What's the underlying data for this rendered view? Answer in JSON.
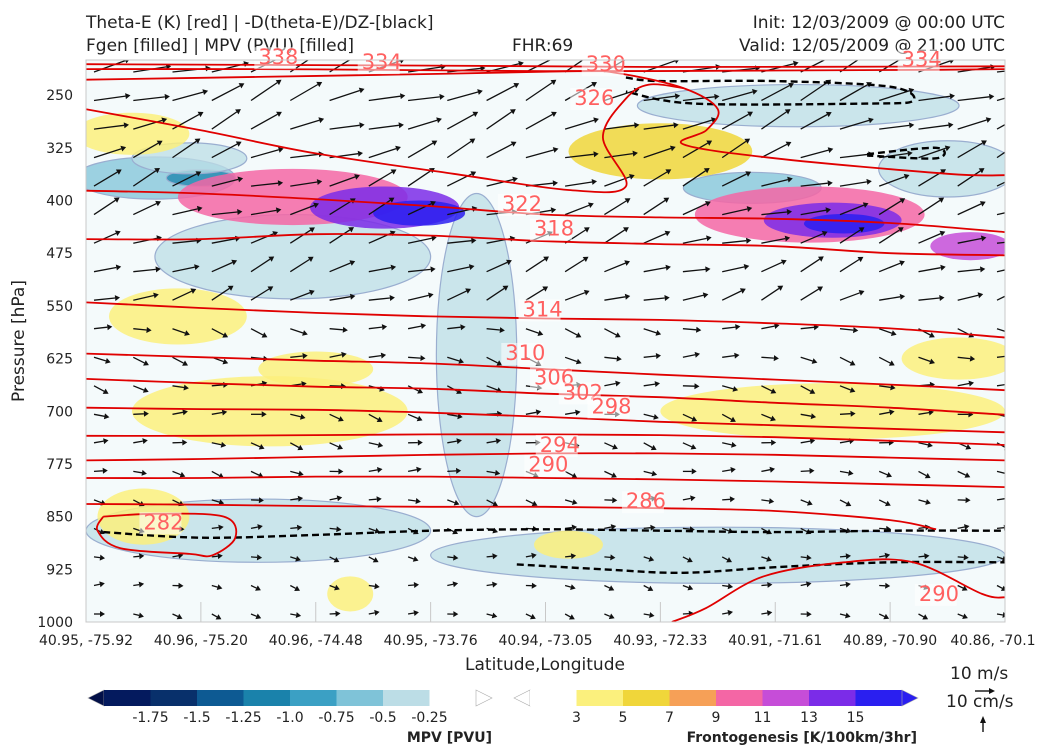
{
  "header": {
    "left_line1": "Theta-E (K) [red] | -D(theta-E)/DZ-[black]",
    "left_line2": "Fgen [filled] | MPV (PVU) [filled]",
    "center": "FHR:69",
    "right_line1": "Init: 12/03/2009 @ 00:00 UTC",
    "right_line2": "Valid: 12/05/2009 @ 21:00 UTC"
  },
  "chart_data": {
    "type": "cross-section",
    "xlabel": "Latitude,Longitude",
    "ylabel": "Pressure [hPa]",
    "ylim": [
      1000,
      200
    ],
    "y_ticks": [
      250,
      325,
      400,
      475,
      550,
      625,
      700,
      775,
      850,
      925,
      1000
    ],
    "x_ticks": [
      "40.95, -75.92",
      "40.96, -75.20",
      "40.96, -74.48",
      "40.95, -73.76",
      "40.94, -73.05",
      "40.93, -72.33",
      "40.91, -71.61",
      "40.89, -70.90",
      "40.86, -70.1"
    ],
    "theta_e_contours": [
      {
        "value": "338",
        "pts": [
          [
            0,
            206
          ],
          [
            1.5,
            207
          ],
          [
            3,
            208
          ],
          [
            5,
            210
          ],
          [
            8,
            209
          ]
        ]
      },
      {
        "value": "334",
        "pts": [
          [
            0,
            213
          ],
          [
            1.5,
            213
          ],
          [
            2.5,
            214
          ],
          [
            4,
            216
          ],
          [
            6,
            215
          ],
          [
            7.4,
            214
          ],
          [
            8,
            213
          ]
        ]
      },
      {
        "value": "330",
        "pts": [
          [
            0,
            228
          ],
          [
            1.5,
            224
          ],
          [
            3,
            220
          ],
          [
            4.2,
            216
          ],
          [
            4.6,
            218
          ],
          [
            5.2,
            240
          ],
          [
            5.5,
            270
          ],
          [
            5.4,
            300
          ],
          [
            5.2,
            320
          ],
          [
            6,
            340
          ],
          [
            7.5,
            362
          ],
          [
            8,
            364
          ]
        ]
      },
      {
        "value": "326",
        "pts": [
          [
            0,
            270
          ],
          [
            1,
            300
          ],
          [
            2,
            333
          ],
          [
            3.2,
            362
          ],
          [
            4.2,
            385
          ],
          [
            4.7,
            380
          ],
          [
            4.5,
            310
          ],
          [
            4.7,
            255
          ],
          [
            4.9,
            235
          ],
          [
            5.2,
            240
          ]
        ]
      },
      {
        "value": "322",
        "pts": [
          [
            0,
            386
          ],
          [
            1,
            390
          ],
          [
            2,
            398
          ],
          [
            3,
            408
          ],
          [
            4,
            420
          ],
          [
            5,
            424
          ],
          [
            6,
            426
          ],
          [
            7,
            432
          ],
          [
            8,
            445
          ]
        ]
      },
      {
        "value": "318",
        "pts": [
          [
            0,
            455
          ],
          [
            1,
            455
          ],
          [
            2,
            448
          ],
          [
            3,
            450
          ],
          [
            4,
            458
          ],
          [
            5,
            462
          ],
          [
            6,
            465
          ],
          [
            7,
            475
          ],
          [
            8,
            478
          ]
        ]
      },
      {
        "value": "314",
        "pts": [
          [
            0,
            545
          ],
          [
            1,
            553
          ],
          [
            2,
            560
          ],
          [
            3,
            565
          ],
          [
            4,
            568
          ],
          [
            5,
            570
          ],
          [
            6,
            575
          ],
          [
            7,
            582
          ],
          [
            8,
            595
          ]
        ]
      },
      {
        "value": "310",
        "pts": [
          [
            0,
            618
          ],
          [
            1,
            623
          ],
          [
            2,
            628
          ],
          [
            3,
            632
          ],
          [
            4,
            640
          ],
          [
            5,
            648
          ],
          [
            6,
            655
          ],
          [
            7,
            662
          ],
          [
            8,
            670
          ]
        ]
      },
      {
        "value": "306",
        "pts": [
          [
            0,
            654
          ],
          [
            1,
            660
          ],
          [
            2,
            665
          ],
          [
            3,
            668
          ],
          [
            4,
            675
          ],
          [
            5,
            680
          ],
          [
            6,
            688
          ],
          [
            7,
            695
          ],
          [
            8,
            705
          ]
        ]
      },
      {
        "value": "302",
        "pts": [
          [
            0,
            695
          ],
          [
            1,
            697
          ],
          [
            2,
            698
          ],
          [
            3,
            702
          ],
          [
            4,
            708
          ],
          [
            5,
            715
          ],
          [
            6,
            720
          ],
          [
            7,
            725
          ],
          [
            8,
            730
          ]
        ]
      },
      {
        "value": "298",
        "pts": [
          [
            0,
            735
          ],
          [
            1,
            735
          ],
          [
            2,
            734
          ],
          [
            3,
            733
          ],
          [
            4,
            733
          ],
          [
            5,
            734
          ],
          [
            6,
            737
          ],
          [
            7,
            742
          ],
          [
            8,
            748
          ]
        ]
      },
      {
        "value": "294",
        "pts": [
          [
            0,
            770
          ],
          [
            1,
            768
          ],
          [
            2,
            765
          ],
          [
            3,
            762
          ],
          [
            4,
            760
          ],
          [
            5,
            760
          ],
          [
            6,
            762
          ],
          [
            7,
            766
          ],
          [
            8,
            770
          ]
        ]
      },
      {
        "value": "290",
        "pts": [
          [
            0,
            795
          ],
          [
            1,
            795
          ],
          [
            2,
            793
          ],
          [
            3,
            793
          ],
          [
            4,
            795
          ],
          [
            5,
            797
          ],
          [
            6,
            800
          ],
          [
            7,
            804
          ],
          [
            8,
            808
          ]
        ]
      },
      {
        "value": "286",
        "pts": [
          [
            0,
            832
          ],
          [
            1,
            833
          ],
          [
            2,
            835
          ],
          [
            3,
            836
          ],
          [
            4,
            836
          ],
          [
            5,
            838
          ],
          [
            6,
            842
          ],
          [
            7,
            855
          ],
          [
            7.4,
            868
          ]
        ]
      },
      {
        "value": "282",
        "pts": [
          [
            0.15,
            850
          ],
          [
            0.6,
            846
          ],
          [
            1.2,
            850
          ],
          [
            1.3,
            880
          ],
          [
            1.1,
            905
          ],
          [
            0.9,
            903
          ],
          [
            0.3,
            895
          ],
          [
            0.1,
            870
          ],
          [
            0.15,
            850
          ]
        ]
      },
      {
        "value": "290",
        "pts": [
          [
            5.1,
            1000
          ],
          [
            5.4,
            980
          ],
          [
            5.9,
            935
          ],
          [
            6.6,
            915
          ],
          [
            7.2,
            915
          ],
          [
            7.8,
            960
          ],
          [
            8,
            965
          ]
        ]
      }
    ],
    "theta_e_label_positions": [
      {
        "text": "338",
        "x": 1.5,
        "y": 206
      },
      {
        "text": "334",
        "x": 2.4,
        "y": 213
      },
      {
        "text": "330",
        "x": 4.35,
        "y": 216
      },
      {
        "text": "334",
        "x": 7.1,
        "y": 209
      },
      {
        "text": "326",
        "x": 4.25,
        "y": 264
      },
      {
        "text": "322",
        "x": 3.62,
        "y": 415
      },
      {
        "text": "318",
        "x": 3.9,
        "y": 450
      },
      {
        "text": "314",
        "x": 3.8,
        "y": 565
      },
      {
        "text": "310",
        "x": 3.65,
        "y": 627
      },
      {
        "text": "306",
        "x": 3.9,
        "y": 662
      },
      {
        "text": "302",
        "x": 4.15,
        "y": 683
      },
      {
        "text": "298",
        "x": 4.4,
        "y": 703
      },
      {
        "text": "294",
        "x": 3.95,
        "y": 758
      },
      {
        "text": "290",
        "x": 3.85,
        "y": 786
      },
      {
        "text": "286",
        "x": 4.7,
        "y": 838
      },
      {
        "text": "282",
        "x": 0.5,
        "y": 868
      },
      {
        "text": "290",
        "x": 7.25,
        "y": 970
      }
    ],
    "stability_contours_black_dashed": [
      [
        [
          0.15,
          872
        ],
        [
          1,
          880
        ],
        [
          2,
          876
        ],
        [
          3,
          870
        ],
        [
          4,
          868
        ],
        [
          5,
          870
        ],
        [
          6,
          872
        ],
        [
          7,
          870
        ],
        [
          8,
          870
        ]
      ],
      [
        [
          3.75,
          918
        ],
        [
          4.5,
          925
        ],
        [
          5.2,
          930
        ],
        [
          6,
          922
        ],
        [
          7,
          915
        ],
        [
          8,
          915
        ]
      ],
      [
        [
          4.7,
          225
        ],
        [
          5,
          230
        ],
        [
          6,
          230
        ],
        [
          7,
          238
        ],
        [
          7.2,
          258
        ],
        [
          6.8,
          262
        ],
        [
          5.3,
          262
        ],
        [
          4.7,
          245
        ]
      ],
      [
        [
          6.8,
          334
        ],
        [
          7.4,
          325
        ],
        [
          7.4,
          340
        ],
        [
          6.8,
          336
        ]
      ]
    ],
    "fgen_fill_levels": [
      3,
      5,
      7,
      9,
      11,
      13,
      15
    ],
    "fgen_colors": [
      "#fbf07d",
      "#f0d63a",
      "#f6a057",
      "#f466a5",
      "#c64dd8",
      "#7b2ce8",
      "#2a1ff0"
    ],
    "mpv_fill_levels": [
      -1.75,
      -1.5,
      -1.25,
      -1.0,
      -0.75,
      -0.5,
      -0.25
    ],
    "mpv_colors": [
      "#041a5e",
      "#08306b",
      "#0d5a93",
      "#1a82ab",
      "#3ba0c4",
      "#7fc3d8",
      "#bcdde6"
    ],
    "fgen_blobs": [
      {
        "cx": 1.8,
        "cy": 395,
        "rx": 1.0,
        "ry": 40,
        "level": 9
      },
      {
        "cx": 2.6,
        "cy": 410,
        "rx": 0.65,
        "ry": 30,
        "level": 13
      },
      {
        "cx": 2.9,
        "cy": 418,
        "rx": 0.4,
        "ry": 18,
        "level": 15
      },
      {
        "cx": 6.3,
        "cy": 420,
        "rx": 1.0,
        "ry": 40,
        "level": 9
      },
      {
        "cx": 6.5,
        "cy": 428,
        "rx": 0.6,
        "ry": 25,
        "level": 13
      },
      {
        "cx": 6.6,
        "cy": 433,
        "rx": 0.35,
        "ry": 14,
        "level": 15
      },
      {
        "cx": 7.7,
        "cy": 465,
        "rx": 0.35,
        "ry": 20,
        "level": 11
      },
      {
        "cx": 5.0,
        "cy": 330,
        "rx": 0.8,
        "ry": 40,
        "level": 5
      },
      {
        "cx": 1.6,
        "cy": 700,
        "rx": 1.2,
        "ry": 50,
        "level": 3
      },
      {
        "cx": 6.5,
        "cy": 700,
        "rx": 1.5,
        "ry": 40,
        "level": 3
      },
      {
        "cx": 0.8,
        "cy": 565,
        "rx": 0.6,
        "ry": 40,
        "level": 3
      },
      {
        "cx": 2.0,
        "cy": 640,
        "rx": 0.5,
        "ry": 25,
        "level": 3
      },
      {
        "cx": 0.5,
        "cy": 850,
        "rx": 0.4,
        "ry": 40,
        "level": 3
      },
      {
        "cx": 4.2,
        "cy": 890,
        "rx": 0.3,
        "ry": 20,
        "level": 3
      },
      {
        "cx": 2.3,
        "cy": 960,
        "rx": 0.2,
        "ry": 25,
        "level": 3
      },
      {
        "cx": 0.4,
        "cy": 305,
        "rx": 0.5,
        "ry": 30,
        "level": 3
      },
      {
        "cx": 7.6,
        "cy": 625,
        "rx": 0.5,
        "ry": 30,
        "level": 3
      }
    ],
    "mpv_blobs": [
      {
        "cx": 0.6,
        "cy": 368,
        "rx": 0.7,
        "ry": 30,
        "level": -0.5
      },
      {
        "cx": 1.0,
        "cy": 368,
        "rx": 0.3,
        "ry": 12,
        "level": -1.0
      },
      {
        "cx": 0.9,
        "cy": 340,
        "rx": 0.5,
        "ry": 22,
        "level": -0.25
      },
      {
        "cx": 3.4,
        "cy": 620,
        "rx": 0.35,
        "ry": 230,
        "level": -0.25
      },
      {
        "cx": 1.5,
        "cy": 870,
        "rx": 1.5,
        "ry": 45,
        "level": -0.25
      },
      {
        "cx": 5.5,
        "cy": 905,
        "rx": 2.5,
        "ry": 40,
        "level": -0.25
      },
      {
        "cx": 6.2,
        "cy": 265,
        "rx": 1.4,
        "ry": 30,
        "level": -0.25
      },
      {
        "cx": 5.8,
        "cy": 382,
        "rx": 0.6,
        "ry": 22,
        "level": -0.5
      },
      {
        "cx": 7.5,
        "cy": 355,
        "rx": 0.6,
        "ry": 40,
        "level": -0.25
      },
      {
        "cx": 1.8,
        "cy": 480,
        "rx": 1.2,
        "ry": 60,
        "level": -0.25
      }
    ],
    "vector_reference": {
      "label_upper": "10 m/s",
      "label_lower": "10 cm/s"
    },
    "colorbars": [
      {
        "title": "MPV [PVU]",
        "labels": [
          "-1.75",
          "-1.5",
          "-1.25",
          "-1.0",
          "-0.75",
          "-0.5",
          "-0.25"
        ]
      },
      {
        "title": "Frontogenesis [K/100km/3hr]",
        "labels": [
          "3",
          "5",
          "7",
          "9",
          "11",
          "13",
          "15"
        ]
      }
    ],
    "grid": false
  }
}
